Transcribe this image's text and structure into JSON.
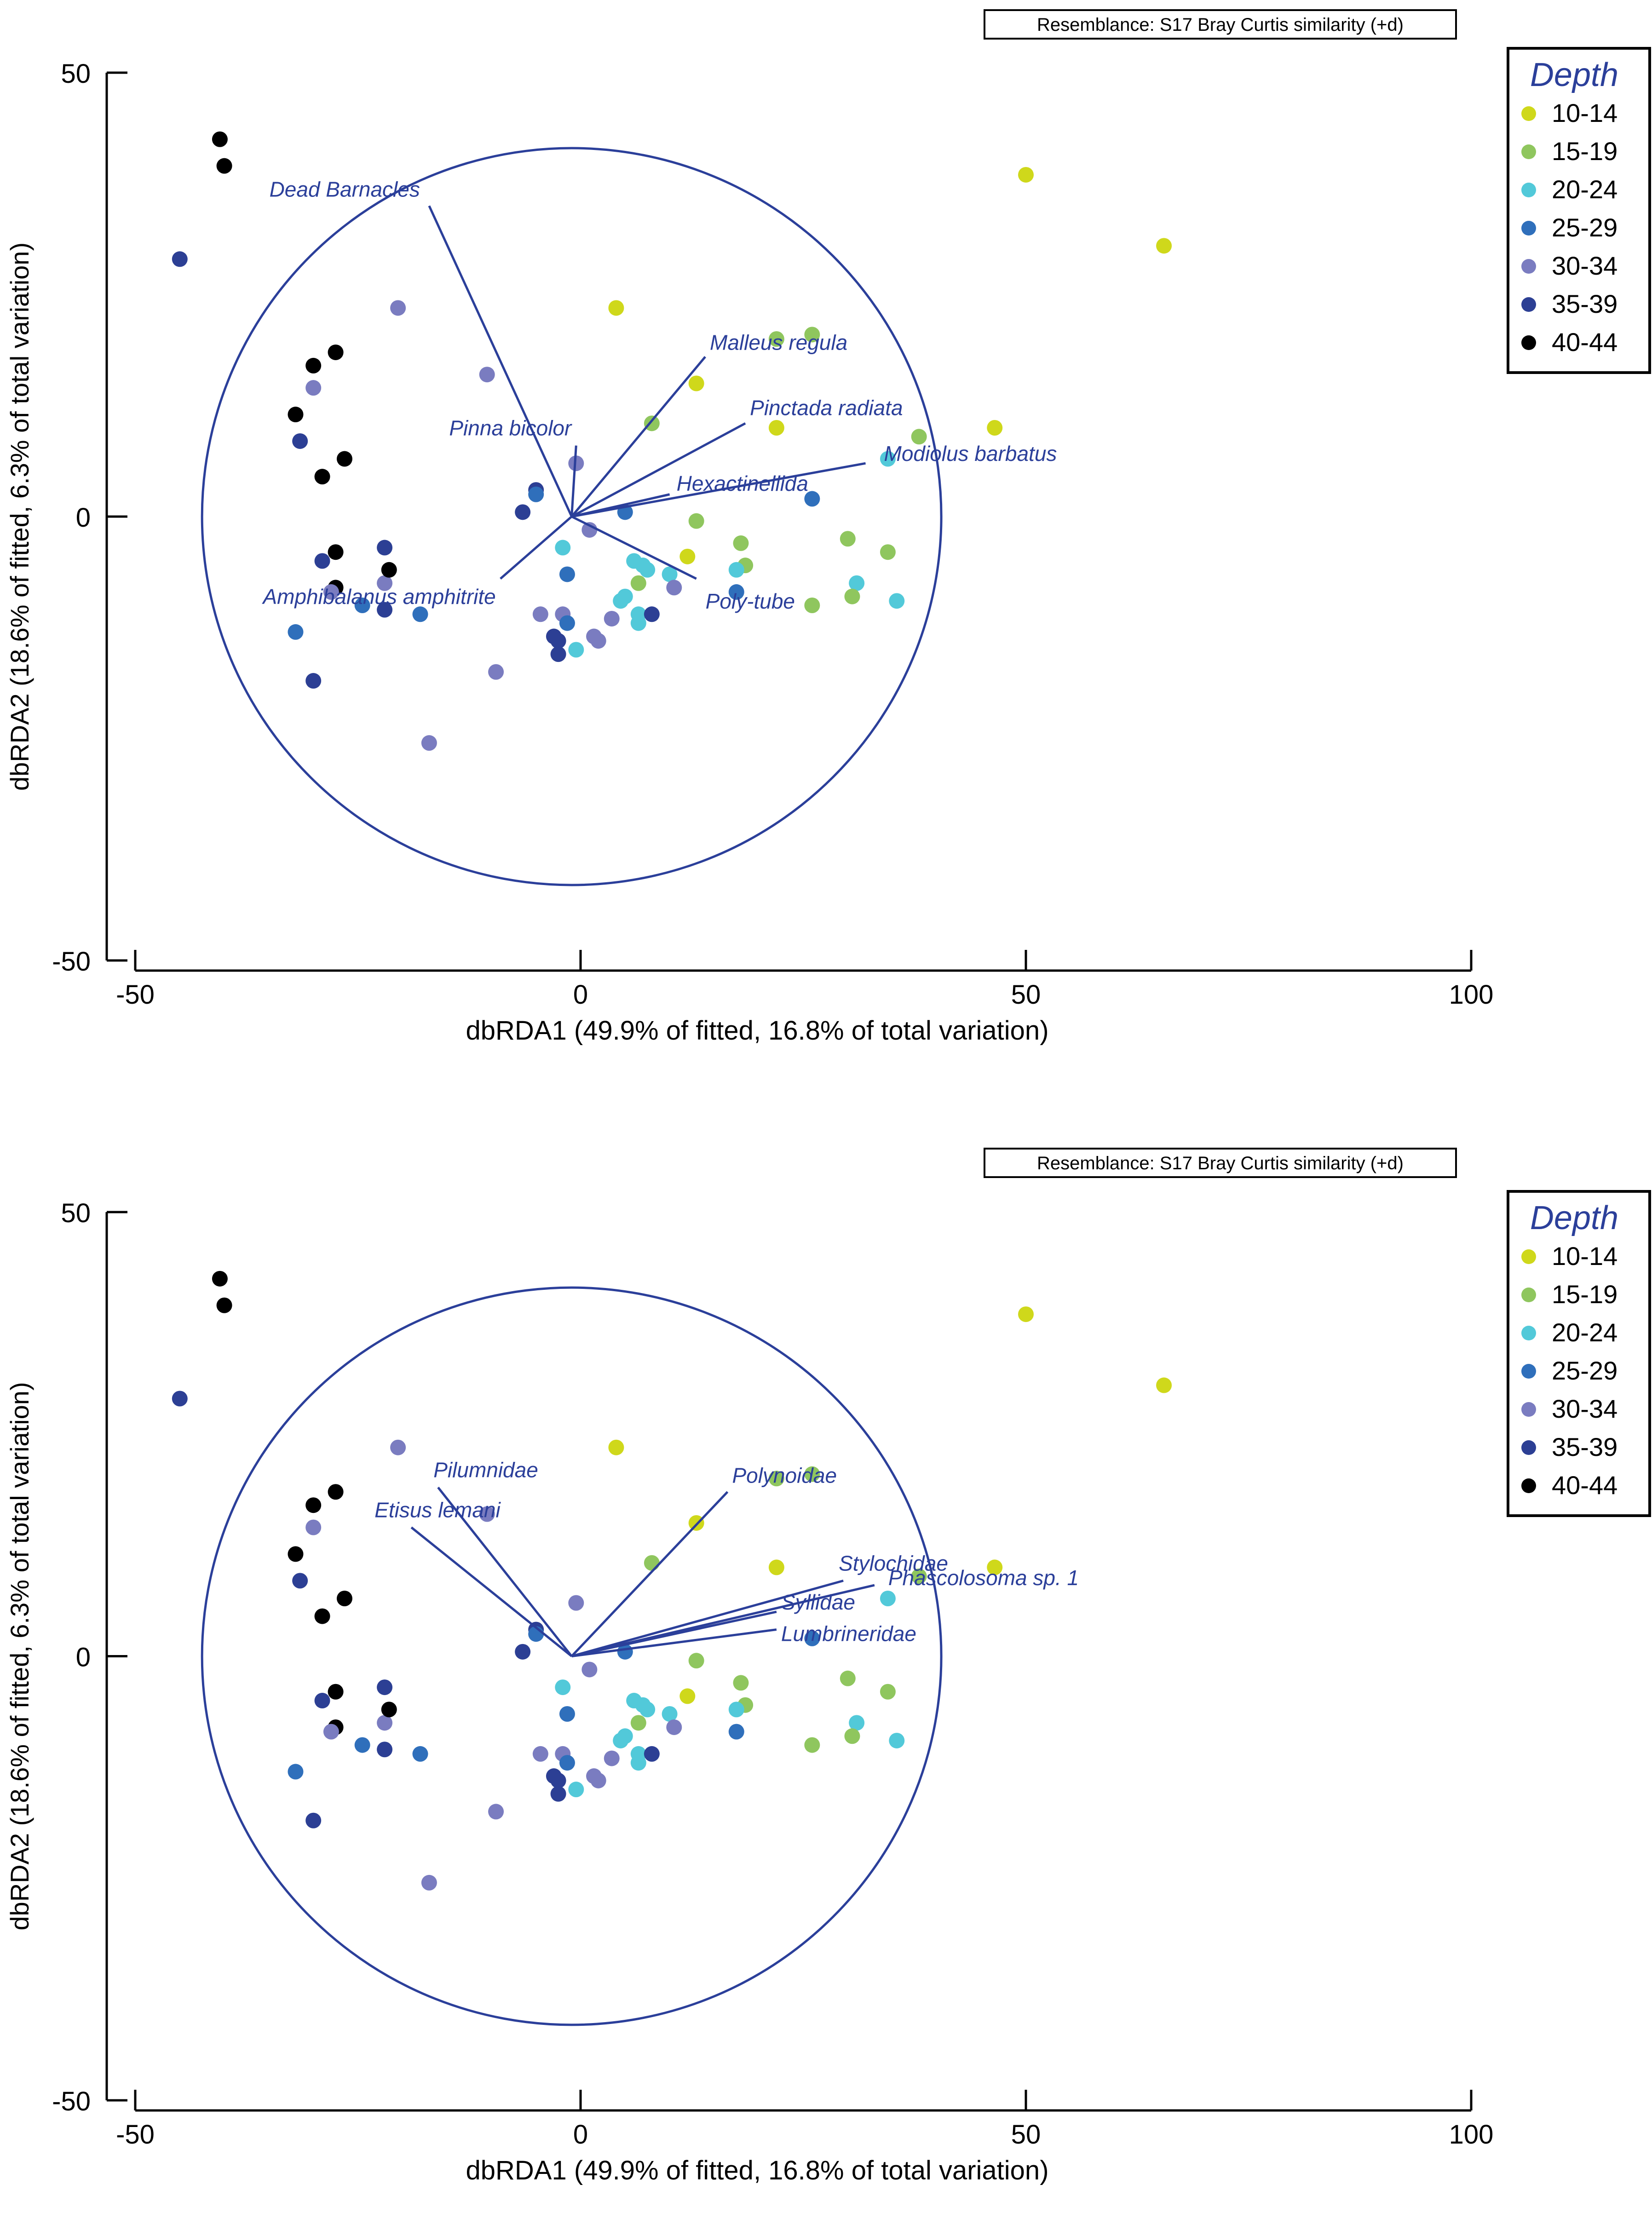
{
  "colors": {
    "axis": "#000000",
    "vector": "#2b3f9a",
    "label": "#2b3f9a",
    "groups": {
      "10-14": "#cfd81b",
      "15-19": "#8fc65e",
      "20-24": "#52c9d9",
      "25-29": "#2f6fbb",
      "30-34": "#7a7cc0",
      "35-39": "#2c3f94",
      "40-44": "#000000"
    }
  },
  "shared_points": [
    {
      "g": "40-44",
      "x": -40.5,
      "y": 42.5
    },
    {
      "g": "40-44",
      "x": -40,
      "y": 39.5
    },
    {
      "g": "35-39",
      "x": -45,
      "y": 29
    },
    {
      "g": "30-34",
      "x": -20.5,
      "y": 23.5
    },
    {
      "g": "40-44",
      "x": -27.5,
      "y": 18.5
    },
    {
      "g": "40-44",
      "x": -30,
      "y": 17
    },
    {
      "g": "30-34",
      "x": -30,
      "y": 14.5
    },
    {
      "g": "40-44",
      "x": -32,
      "y": 11.5
    },
    {
      "g": "35-39",
      "x": -31.5,
      "y": 8.5
    },
    {
      "g": "40-44",
      "x": -26.5,
      "y": 6.5
    },
    {
      "g": "40-44",
      "x": -29,
      "y": 4.5
    },
    {
      "g": "30-34",
      "x": -10.5,
      "y": 16
    },
    {
      "g": "10-14",
      "x": 4,
      "y": 23.5
    },
    {
      "g": "15-19",
      "x": 22,
      "y": 20
    },
    {
      "g": "15-19",
      "x": 26,
      "y": 20.5
    },
    {
      "g": "10-14",
      "x": 13,
      "y": 15
    },
    {
      "g": "15-19",
      "x": 8,
      "y": 10.5
    },
    {
      "g": "10-14",
      "x": 22,
      "y": 10
    },
    {
      "g": "10-14",
      "x": 46.5,
      "y": 10
    },
    {
      "g": "15-19",
      "x": 38,
      "y": 9
    },
    {
      "g": "20-24",
      "x": 34.5,
      "y": 6.5
    },
    {
      "g": "10-14",
      "x": 50,
      "y": 38.5
    },
    {
      "g": "10-14",
      "x": 65.5,
      "y": 30.5
    },
    {
      "g": "30-34",
      "x": -0.5,
      "y": 6
    },
    {
      "g": "35-39",
      "x": -5,
      "y": 3
    },
    {
      "g": "25-29",
      "x": -5,
      "y": 2.5
    },
    {
      "g": "35-39",
      "x": -6.5,
      "y": 0.5
    },
    {
      "g": "25-29",
      "x": 5,
      "y": 0.5
    },
    {
      "g": "25-29",
      "x": 26,
      "y": 2
    },
    {
      "g": "30-34",
      "x": 1,
      "y": -1.5
    },
    {
      "g": "15-19",
      "x": 13,
      "y": -0.5
    },
    {
      "g": "20-24",
      "x": -2,
      "y": -3.5
    },
    {
      "g": "10-14",
      "x": 12,
      "y": -4.5
    },
    {
      "g": "15-19",
      "x": 18,
      "y": -3
    },
    {
      "g": "15-19",
      "x": 18.5,
      "y": -5.5
    },
    {
      "g": "15-19",
      "x": 30,
      "y": -2.5
    },
    {
      "g": "15-19",
      "x": 34.5,
      "y": -4
    },
    {
      "g": "20-24",
      "x": 6,
      "y": -5
    },
    {
      "g": "20-24",
      "x": 7,
      "y": -5.5
    },
    {
      "g": "20-24",
      "x": 7.5,
      "y": -6
    },
    {
      "g": "20-24",
      "x": 10,
      "y": -6.5
    },
    {
      "g": "20-24",
      "x": 17.5,
      "y": -6
    },
    {
      "g": "25-29",
      "x": -1.5,
      "y": -6.5
    },
    {
      "g": "15-19",
      "x": 6.5,
      "y": -7.5
    },
    {
      "g": "20-24",
      "x": 5,
      "y": -9
    },
    {
      "g": "20-24",
      "x": 4.5,
      "y": -9.5
    },
    {
      "g": "30-34",
      "x": 10.5,
      "y": -8
    },
    {
      "g": "25-29",
      "x": 17.5,
      "y": -8.5
    },
    {
      "g": "20-24",
      "x": 31,
      "y": -7.5
    },
    {
      "g": "15-19",
      "x": 26,
      "y": -10
    },
    {
      "g": "15-19",
      "x": 30.5,
      "y": -9
    },
    {
      "g": "20-24",
      "x": 35.5,
      "y": -9.5
    },
    {
      "g": "30-34",
      "x": -4.5,
      "y": -11
    },
    {
      "g": "30-34",
      "x": -2,
      "y": -11
    },
    {
      "g": "25-29",
      "x": -1.5,
      "y": -12
    },
    {
      "g": "30-34",
      "x": 3.5,
      "y": -11.5
    },
    {
      "g": "20-24",
      "x": 6.5,
      "y": -11
    },
    {
      "g": "20-24",
      "x": 6.5,
      "y": -12
    },
    {
      "g": "35-39",
      "x": 8,
      "y": -11
    },
    {
      "g": "35-39",
      "x": -3,
      "y": -13.5
    },
    {
      "g": "35-39",
      "x": -2.5,
      "y": -14
    },
    {
      "g": "30-34",
      "x": 1.5,
      "y": -13.5
    },
    {
      "g": "30-34",
      "x": 2,
      "y": -14
    },
    {
      "g": "20-24",
      "x": -0.5,
      "y": -15
    },
    {
      "g": "35-39",
      "x": -2.5,
      "y": -15.5
    },
    {
      "g": "30-34",
      "x": -9.5,
      "y": -17.5
    },
    {
      "g": "30-34",
      "x": -17,
      "y": -25.5
    },
    {
      "g": "25-29",
      "x": -32,
      "y": -13
    },
    {
      "g": "35-39",
      "x": -30,
      "y": -18.5
    },
    {
      "g": "25-29",
      "x": -24.5,
      "y": -10
    },
    {
      "g": "25-29",
      "x": -18,
      "y": -11
    },
    {
      "g": "35-39",
      "x": -22,
      "y": -10.5
    },
    {
      "g": "30-34",
      "x": -22,
      "y": -7.5
    },
    {
      "g": "40-44",
      "x": -27.5,
      "y": -8
    },
    {
      "g": "30-34",
      "x": -28,
      "y": -8.5
    },
    {
      "g": "35-39",
      "x": -29,
      "y": -5
    },
    {
      "g": "40-44",
      "x": -27.5,
      "y": -4
    },
    {
      "g": "35-39",
      "x": -22,
      "y": -3.5
    },
    {
      "g": "40-44",
      "x": -21.5,
      "y": -6
    }
  ],
  "chart_data": [
    {
      "type": "scatter",
      "panel": "top",
      "resemblance": "Resemblance: S17 Bray Curtis similarity (+d)",
      "xlabel": "dbRDA1 (49.9% of fitted, 16.8% of total variation)",
      "ylabel": "dbRDA2 (18.6% of fitted, 6.3% of total variation)",
      "xlim": [
        -50,
        100
      ],
      "ylim": [
        -50,
        50
      ],
      "xticks": [
        -50,
        0,
        50,
        100
      ],
      "yticks": [
        50,
        0,
        -50
      ],
      "legend_title": "Depth",
      "legend_entries": [
        "10-14",
        "15-19",
        "20-24",
        "25-29",
        "30-34",
        "35-39",
        "40-44"
      ],
      "circle_center": [
        -1,
        0
      ],
      "circle_radius": 41.5,
      "vectors": [
        {
          "label": "Dead Barnacles",
          "x": -17,
          "y": 35
        },
        {
          "label": "Pinna bicolor",
          "x": -0.5,
          "y": 8
        },
        {
          "label": "Malleus regula",
          "x": 14,
          "y": 18
        },
        {
          "label": "Pinctada radiata",
          "x": 18.5,
          "y": 10.5
        },
        {
          "label": "Modiolus barbatus",
          "x": 32,
          "y": 6
        },
        {
          "label": "Hexactinellida",
          "x": 10,
          "y": 2.5
        },
        {
          "label": "Amphibalanus amphitrite",
          "x": -9,
          "y": -7
        },
        {
          "label": "Poly-tube",
          "x": 13,
          "y": -7
        }
      ]
    },
    {
      "type": "scatter",
      "panel": "bottom",
      "resemblance": "Resemblance: S17 Bray Curtis similarity (+d)",
      "xlabel": "dbRDA1 (49.9% of fitted, 16.8% of total variation)",
      "ylabel": "dbRDA2 (18.6% of fitted, 6.3% of total variation)",
      "xlim": [
        -50,
        100
      ],
      "ylim": [
        -50,
        50
      ],
      "xticks": [
        -50,
        0,
        50,
        100
      ],
      "yticks": [
        50,
        0,
        -50
      ],
      "legend_title": "Depth",
      "legend_entries": [
        "10-14",
        "15-19",
        "20-24",
        "25-29",
        "30-34",
        "35-39",
        "40-44"
      ],
      "circle_center": [
        -1,
        0
      ],
      "circle_radius": 41.5,
      "vectors": [
        {
          "label": "Pilumnidae",
          "x": -16,
          "y": 19
        },
        {
          "label": "Etisus lemani",
          "x": -19,
          "y": 14.5
        },
        {
          "label": "Polynoidae",
          "x": 16.5,
          "y": 18.5
        },
        {
          "label": "Stylochidae",
          "x": 29.5,
          "y": 8.5
        },
        {
          "label": "Phascolosoma sp. 1",
          "x": 33,
          "y": 8
        },
        {
          "label": "Syllidae",
          "x": 22,
          "y": 5
        },
        {
          "label": "Lumbrineridae",
          "x": 22,
          "y": 3
        }
      ]
    }
  ]
}
